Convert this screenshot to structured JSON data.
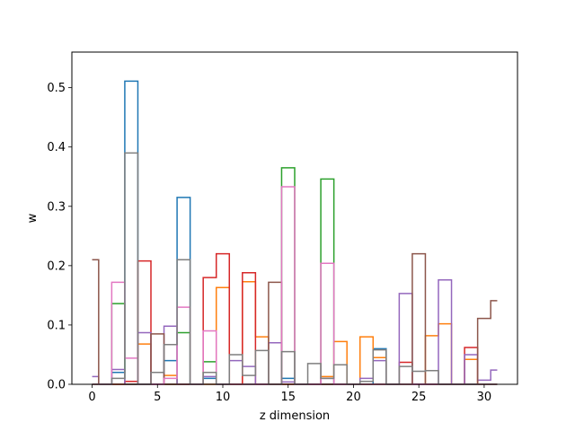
{
  "chart_data": {
    "type": "step",
    "xlabel": "z dimension",
    "ylabel": "w",
    "xlim": [
      -1.55,
      32.55
    ],
    "ylim": [
      0,
      0.56
    ],
    "xticks": [
      0,
      5,
      10,
      15,
      20,
      25,
      30
    ],
    "yticks": [
      0.0,
      0.1,
      0.2,
      0.3,
      0.4,
      0.5
    ],
    "grid": false,
    "series": [
      {
        "color": "#1f77b4",
        "values": [
          0,
          0,
          0.02,
          0.511,
          0,
          0,
          0.04,
          0.315,
          0,
          0.01,
          0,
          0,
          0,
          0,
          0,
          0.01,
          0,
          0,
          0,
          0,
          0,
          0,
          0.06,
          0,
          0,
          0,
          0,
          0,
          0,
          0,
          0,
          0
        ]
      },
      {
        "color": "#ff7f0e",
        "values": [
          0,
          0,
          0,
          0,
          0.068,
          0,
          0.015,
          0,
          0,
          0,
          0.163,
          0,
          0.173,
          0.08,
          0,
          0,
          0,
          0,
          0.013,
          0.072,
          0,
          0.08,
          0.045,
          0,
          0,
          0,
          0.082,
          0.102,
          0,
          0.042,
          0,
          0
        ]
      },
      {
        "color": "#2ca02c",
        "values": [
          0,
          0,
          0.136,
          0,
          0,
          0,
          0,
          0.087,
          0,
          0.038,
          0,
          0,
          0,
          0,
          0,
          0.365,
          0,
          0,
          0.346,
          0,
          0,
          0,
          0,
          0,
          0,
          0,
          0,
          0,
          0,
          0,
          0,
          0
        ]
      },
      {
        "color": "#d62728",
        "values": [
          0,
          0,
          0,
          0.005,
          0.208,
          0,
          0,
          0,
          0,
          0.18,
          0.22,
          0,
          0.188,
          0,
          0,
          0,
          0,
          0,
          0,
          0,
          0,
          0,
          0,
          0,
          0.037,
          0,
          0,
          0,
          0,
          0.062,
          0,
          0
        ]
      },
      {
        "color": "#9467bd",
        "values": [
          0.013,
          0,
          0.025,
          0,
          0.087,
          0,
          0.098,
          0,
          0,
          0.013,
          0,
          0.04,
          0.03,
          0,
          0.07,
          0.004,
          0,
          0,
          0.01,
          0,
          0,
          0.01,
          0.04,
          0,
          0.153,
          0,
          0,
          0.176,
          0,
          0.05,
          0.007,
          0.024
        ]
      },
      {
        "color": "#8c564b",
        "values": [
          0.21,
          0,
          0,
          0,
          0,
          0.085,
          0,
          0,
          0,
          0,
          0,
          0,
          0,
          0,
          0.172,
          0,
          0,
          0,
          0,
          0,
          0,
          0,
          0,
          0,
          0,
          0.22,
          0,
          0,
          0,
          0,
          0.111,
          0.141
        ]
      },
      {
        "color": "#e377c2",
        "values": [
          0,
          0,
          0.172,
          0.044,
          0,
          0,
          0.01,
          0.13,
          0,
          0.09,
          0,
          0,
          0,
          0,
          0,
          0.333,
          0,
          0,
          0.204,
          0,
          0,
          0,
          0,
          0,
          0,
          0,
          0,
          0,
          0,
          0,
          0,
          0
        ]
      },
      {
        "color": "#7f7f7f",
        "values": [
          0,
          0,
          0.01,
          0.39,
          0,
          0.02,
          0.067,
          0.21,
          0,
          0.02,
          0,
          0.05,
          0.015,
          0.057,
          0,
          0.055,
          0,
          0.035,
          0.01,
          0.033,
          0,
          0.005,
          0.058,
          0,
          0.03,
          0.022,
          0.023,
          0,
          0,
          0,
          0,
          0
        ]
      }
    ]
  }
}
